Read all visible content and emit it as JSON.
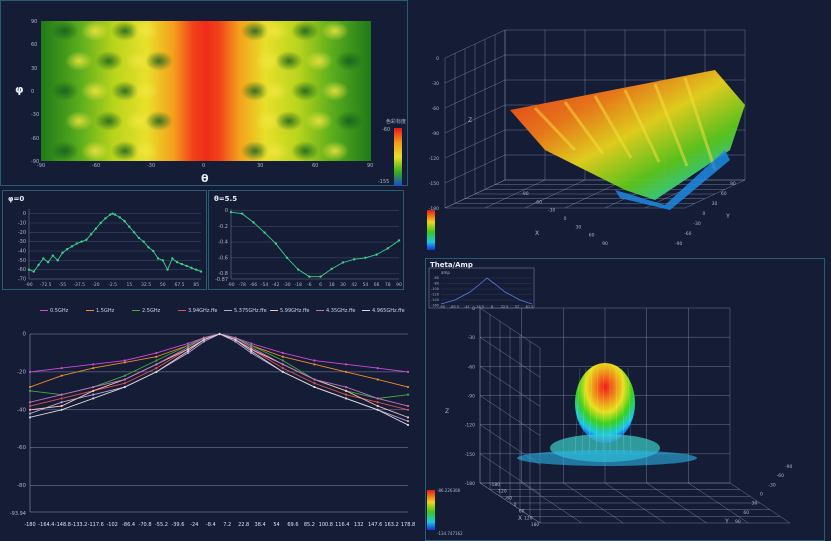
{
  "heatmap": {
    "phi_symbol": "φ",
    "theta_symbol": "θ",
    "y_ticks": [
      "90",
      "60",
      "30",
      "0",
      "-30",
      "-60",
      "-90"
    ],
    "x_ticks": [
      "-90",
      "-60",
      "-30",
      "0",
      "30",
      "60",
      "90"
    ],
    "colorbar_label": "色彩标度",
    "colorbar_max": "-60",
    "colorbar_min": "-155"
  },
  "cut_phi": {
    "title": "φ=0",
    "y_ticks": [
      "0",
      "-10",
      "-20",
      "-30",
      "-40",
      "-50",
      "-60",
      "-70"
    ],
    "x_ticks": [
      "-90",
      "-72.5",
      "-55",
      "-37.5",
      "-20",
      "-2.5",
      "15",
      "32.5",
      "50",
      "67.5",
      "85"
    ]
  },
  "cut_theta": {
    "title": "θ=5.5",
    "y_ticks": [
      "0",
      "-0.2",
      "-0.4",
      "-0.6",
      "-0.8"
    ],
    "y_min_label": "-0.87",
    "x_ticks": [
      "-90",
      "-78",
      "-66",
      "-54",
      "-42",
      "-30",
      "-18",
      "-6",
      "6",
      "18",
      "30",
      "42",
      "54",
      "66",
      "78",
      "90"
    ]
  },
  "multi": {
    "legend": [
      "0.5GHz",
      "1.5GHz",
      "2.5GHz",
      "3.94GHz.ffe",
      "5.375GHz.ffe",
      "5.99GHz.ffe",
      "4.35GHz.ffe",
      "4.965GHz.ffe"
    ],
    "legend_colors": [
      "#d04ad8",
      "#f08a2a",
      "#3fae3a",
      "#e0524a",
      "#b9a2d8",
      "#f0c0b0",
      "#c070c0",
      "#d8d8d8"
    ],
    "y_ticks": [
      "0",
      "-20",
      "-40",
      "-60",
      "-80"
    ],
    "y_min_label": "-93.94",
    "x_ticks": [
      "-180",
      "-164.4",
      "-148.8",
      "-133.2",
      "-117.6",
      "-102",
      "-86.4",
      "-70.8",
      "-55.2",
      "-39.6",
      "-24",
      "-8.4",
      "7.2",
      "22.8",
      "38.4",
      "54",
      "69.6",
      "85.2",
      "100.8",
      "116.4",
      "132",
      "147.6",
      "163.2",
      "178.8"
    ]
  },
  "plot3d_top": {
    "z_ticks": [
      "0",
      "-30",
      "-60",
      "-90",
      "-120",
      "-150",
      "-180"
    ],
    "x_ticks": [
      "-90",
      "-60",
      "-30",
      "0",
      "30",
      "60",
      "90"
    ],
    "y_ticks": [
      "90",
      "60",
      "30",
      "0",
      "-30",
      "-60",
      "-90"
    ],
    "z_label": "Z",
    "x_label": "X",
    "y_label": "Y"
  },
  "plot3d_bottom": {
    "title": "Theta/Amp",
    "mini_label": "amp",
    "mini_y_ticks": [
      "-60",
      "-80",
      "-100",
      "-120",
      "-140",
      "-160"
    ],
    "mini_x_ticks": [
      "-90",
      "-65.5",
      "-41",
      "-16.5",
      "8",
      "32.5",
      "57",
      "81.5"
    ],
    "z_ticks": [
      "0",
      "-30",
      "-60",
      "-90",
      "-120",
      "-150",
      "-180"
    ],
    "x_ticks": [
      "-180",
      "-120",
      "-60",
      "0",
      "60",
      "120",
      "180"
    ],
    "y_ticks": [
      "-90",
      "-60",
      "-30",
      "0",
      "30",
      "60",
      "90"
    ],
    "z_label": "Z",
    "x_label": "X",
    "y_label": "Y",
    "colorbar_max": "-86.226308",
    "colorbar_min": "-134.747162"
  },
  "chart_data": [
    {
      "type": "heatmap",
      "xlabel": "θ",
      "ylabel": "φ",
      "xlim": [
        -90,
        90
      ],
      "ylim": [
        -90,
        90
      ],
      "colorbar_range": [
        -155,
        -60
      ],
      "note": ""
    },
    {
      "type": "line",
      "title": "φ=0",
      "xlim": [
        -90,
        90
      ],
      "ylim": [
        -70,
        5
      ],
      "x": [
        -90,
        -85,
        -80,
        -75,
        -70,
        -65,
        -60,
        -55,
        -50,
        -45,
        -40,
        -35,
        -30,
        -25,
        -20,
        -15,
        -10,
        -5,
        -2.5,
        0,
        5,
        10,
        15,
        20,
        25,
        30,
        35,
        40,
        45,
        50,
        55,
        60,
        65,
        70,
        75,
        80,
        85,
        90
      ],
      "y": [
        -60,
        -62,
        -55,
        -48,
        -52,
        -45,
        -50,
        -42,
        -38,
        -35,
        -32,
        -30,
        -28,
        -22,
        -16,
        -10,
        -5,
        -1,
        0,
        -1,
        -4,
        -8,
        -14,
        -20,
        -26,
        -30,
        -36,
        -40,
        -48,
        -50,
        -60,
        -48,
        -52,
        -54,
        -56,
        -58,
        -60,
        -62
      ]
    },
    {
      "type": "line",
      "title": "θ=5.5",
      "xlim": [
        -90,
        90
      ],
      "ylim": [
        -0.87,
        0.02
      ],
      "x": [
        -90,
        -78,
        -66,
        -54,
        -42,
        -30,
        -18,
        -6,
        6,
        18,
        30,
        42,
        54,
        66,
        78,
        90
      ],
      "y": [
        -0.02,
        -0.04,
        -0.15,
        -0.28,
        -0.42,
        -0.6,
        -0.75,
        -0.84,
        -0.84,
        -0.74,
        -0.66,
        -0.62,
        -0.6,
        -0.56,
        -0.48,
        -0.38
      ]
    },
    {
      "type": "line",
      "xlim": [
        -180,
        178.8
      ],
      "ylim": [
        -93.94,
        0
      ],
      "categories": [
        -180,
        -150,
        -120,
        -90,
        -60,
        -30,
        -15,
        0,
        15,
        30,
        60,
        90,
        120,
        150,
        178.8
      ],
      "series": [
        {
          "name": "0.5GHz",
          "values": [
            -20,
            -18,
            -16,
            -14,
            -10,
            -5,
            -2,
            0,
            -2,
            -5,
            -10,
            -14,
            -16,
            -18,
            -20
          ]
        },
        {
          "name": "1.5GHz",
          "values": [
            -28,
            -22,
            -18,
            -15,
            -12,
            -6,
            -2,
            0,
            -2,
            -6,
            -12,
            -16,
            -20,
            -24,
            -28
          ]
        },
        {
          "name": "2.5GHz",
          "values": [
            -30,
            -32,
            -28,
            -22,
            -14,
            -6,
            -2,
            0,
            -2,
            -6,
            -14,
            -24,
            -30,
            -34,
            -32
          ]
        },
        {
          "name": "3.94GHz.ffe",
          "values": [
            -38,
            -34,
            -30,
            -26,
            -18,
            -8,
            -3,
            0,
            -3,
            -8,
            -18,
            -26,
            -32,
            -36,
            -40
          ]
        },
        {
          "name": "5.375GHz.ffe",
          "values": [
            -42,
            -36,
            -32,
            -28,
            -20,
            -10,
            -4,
            0,
            -4,
            -10,
            -20,
            -28,
            -34,
            -40,
            -46
          ]
        },
        {
          "name": "5.99GHz.ffe",
          "values": [
            -40,
            -38,
            -30,
            -24,
            -16,
            -8,
            -3,
            0,
            -3,
            -8,
            -16,
            -24,
            -30,
            -38,
            -44
          ]
        },
        {
          "name": "4.35GHz.ffe",
          "values": [
            -36,
            -32,
            -28,
            -24,
            -16,
            -7,
            -2,
            0,
            -2,
            -7,
            -16,
            -24,
            -28,
            -34,
            -38
          ]
        },
        {
          "name": "4.965GHz.ffe",
          "values": [
            -44,
            -40,
            -34,
            -28,
            -20,
            -9,
            -3,
            0,
            -3,
            -9,
            -20,
            -28,
            -34,
            -40,
            -48
          ]
        }
      ]
    }
  ]
}
